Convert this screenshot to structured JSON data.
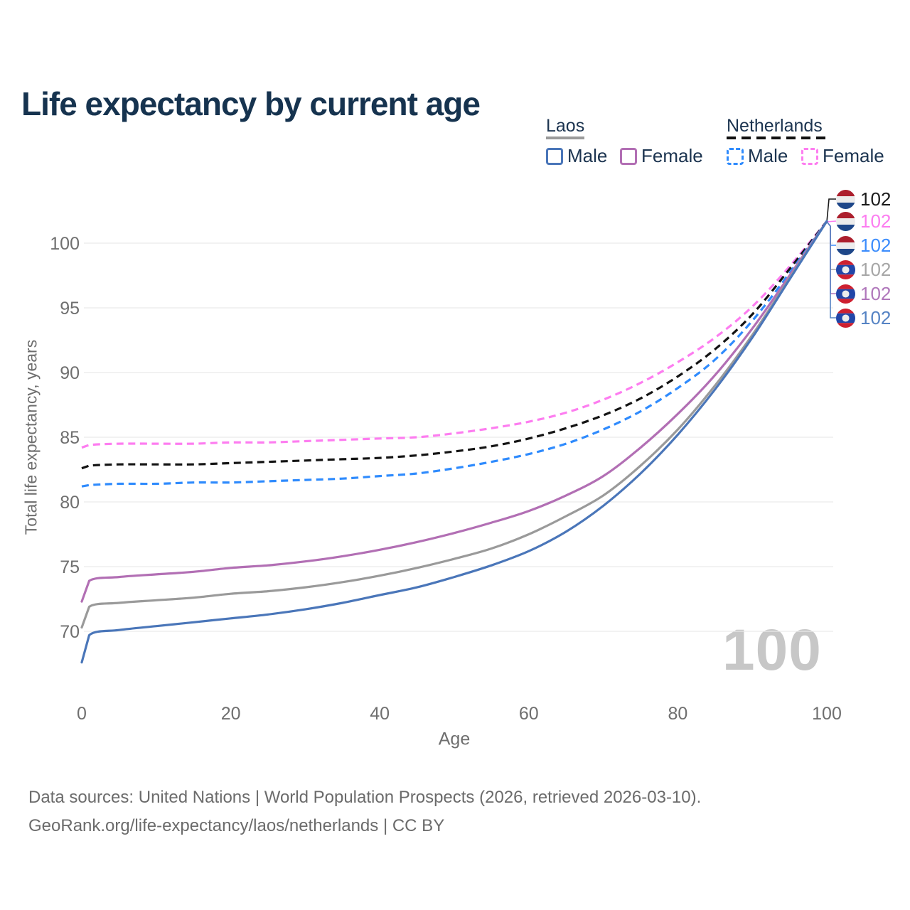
{
  "title": "Life expectancy by current age",
  "legend": {
    "groups": [
      {
        "label": "Laos",
        "line_style": "solid",
        "underline_color": "#9a9a9a",
        "items": [
          {
            "label": "Male",
            "color": "#4a76b9"
          },
          {
            "label": "Female",
            "color": "#b26fb4"
          }
        ]
      },
      {
        "label": "Netherlands",
        "line_style": "dashed",
        "underline_color": "#111111",
        "items": [
          {
            "label": "Male",
            "color": "#2f8bfd"
          },
          {
            "label": "Female",
            "color": "#fd7df0"
          }
        ]
      }
    ]
  },
  "chart_data": {
    "type": "line",
    "title": "Life expectancy by current age",
    "xlabel": "Age",
    "ylabel": "Total life expectancy, years",
    "xlim": [
      0,
      100
    ],
    "ylim": [
      66,
      103
    ],
    "x_ticks": [
      0,
      20,
      40,
      60,
      80,
      100
    ],
    "y_ticks": [
      70,
      75,
      80,
      85,
      90,
      95,
      100
    ],
    "grid": "horizontal",
    "legend_position": "top-right",
    "x": [
      0,
      1,
      5,
      10,
      15,
      20,
      25,
      30,
      35,
      40,
      45,
      50,
      55,
      60,
      65,
      70,
      75,
      80,
      85,
      90,
      95,
      100
    ],
    "series": [
      {
        "name": "Netherlands Female",
        "country": "Netherlands",
        "sex": "Female",
        "color": "#fd7df0",
        "dashed": true,
        "values": [
          84.2,
          84.4,
          84.5,
          84.5,
          84.5,
          84.6,
          84.6,
          84.7,
          84.8,
          84.9,
          85.0,
          85.3,
          85.7,
          86.2,
          86.9,
          87.9,
          89.2,
          90.8,
          92.7,
          95.1,
          98.2,
          101.7
        ]
      },
      {
        "name": "Netherlands All",
        "country": "Netherlands",
        "sex": "All",
        "color": "#141414",
        "dashed": true,
        "values": [
          82.6,
          82.8,
          82.9,
          82.9,
          82.9,
          83.0,
          83.1,
          83.2,
          83.3,
          83.4,
          83.6,
          83.9,
          84.3,
          84.9,
          85.7,
          86.7,
          88.0,
          89.7,
          91.8,
          94.5,
          98.0,
          101.7
        ]
      },
      {
        "name": "Netherlands Male",
        "country": "Netherlands",
        "sex": "Male",
        "color": "#2f8bfd",
        "dashed": true,
        "values": [
          81.2,
          81.3,
          81.4,
          81.4,
          81.5,
          81.5,
          81.6,
          81.7,
          81.8,
          82.0,
          82.2,
          82.6,
          83.1,
          83.7,
          84.5,
          85.6,
          87.0,
          88.8,
          91.0,
          94.0,
          97.7,
          101.7
        ]
      },
      {
        "name": "Laos Female",
        "country": "Laos",
        "sex": "Female",
        "color": "#b26fb4",
        "dashed": false,
        "values": [
          72.3,
          73.9,
          74.2,
          74.4,
          74.6,
          74.9,
          75.1,
          75.4,
          75.8,
          76.3,
          76.9,
          77.6,
          78.4,
          79.3,
          80.5,
          82.0,
          84.2,
          86.8,
          89.8,
          93.4,
          97.5,
          101.7
        ]
      },
      {
        "name": "Laos All",
        "country": "Laos",
        "sex": "All",
        "color": "#9a9a9a",
        "dashed": false,
        "values": [
          70.3,
          71.9,
          72.2,
          72.4,
          72.6,
          72.9,
          73.1,
          73.4,
          73.8,
          74.3,
          74.9,
          75.6,
          76.4,
          77.5,
          78.9,
          80.5,
          82.8,
          85.6,
          89.0,
          92.9,
          97.3,
          101.7
        ]
      },
      {
        "name": "Laos Male",
        "country": "Laos",
        "sex": "Male",
        "color": "#4a76b9",
        "dashed": false,
        "values": [
          67.6,
          69.7,
          70.1,
          70.4,
          70.7,
          71.0,
          71.3,
          71.7,
          72.2,
          72.8,
          73.4,
          74.2,
          75.1,
          76.2,
          77.7,
          79.7,
          82.2,
          85.2,
          88.7,
          92.7,
          97.2,
          101.7
        ]
      }
    ]
  },
  "endpoint_labels": [
    {
      "flag": "netherlands",
      "flag_icon": "netherlands-flag-icon",
      "value": "102",
      "color": "#1a1a1a",
      "series": "Netherlands All"
    },
    {
      "flag": "netherlands",
      "flag_icon": "netherlands-flag-icon",
      "value": "102",
      "color": "#fc7df0",
      "series": "Netherlands Female"
    },
    {
      "flag": "netherlands",
      "flag_icon": "netherlands-flag-icon",
      "value": "102",
      "color": "#3b8cfc",
      "series": "Netherlands Male"
    },
    {
      "flag": "laos",
      "flag_icon": "laos-flag-icon",
      "value": "102",
      "color": "#a6a6a6",
      "series": "Laos All"
    },
    {
      "flag": "laos",
      "flag_icon": "laos-flag-icon",
      "value": "102",
      "color": "#b077bb",
      "series": "Laos Female"
    },
    {
      "flag": "laos",
      "flag_icon": "laos-flag-icon",
      "value": "102",
      "color": "#5583c4",
      "series": "Laos Male"
    }
  ],
  "watermark": {
    "text": "100"
  },
  "footer": {
    "line1": "Data sources: United Nations | World Population Prospects (2026, retrieved 2026-03-10).",
    "line2": "GeoRank.org/life-expectancy/laos/netherlands | CC BY"
  },
  "colors": {
    "title_text": "#16334f",
    "axis_text": "#6e6e6e",
    "gridline": "#e9e9e9",
    "watermark": "#c7c7c7",
    "nl_flag": {
      "red": "#AC1F2D",
      "white": "#ececec",
      "blue": "#1E4789"
    },
    "laos_flag": {
      "red": "#CE2030",
      "blue": "#2146A8",
      "white": "#ececec"
    }
  }
}
